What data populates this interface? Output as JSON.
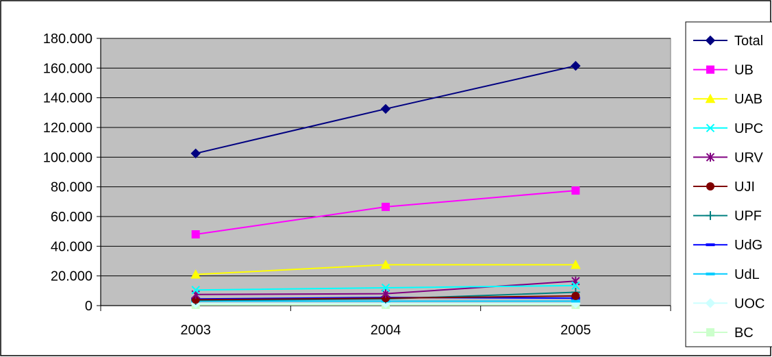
{
  "chart_data": {
    "type": "line",
    "title": "",
    "xlabel": "",
    "ylabel": "",
    "categories": [
      "2003",
      "2004",
      "2005"
    ],
    "ylim": [
      0,
      180000
    ],
    "yticks": [
      {
        "value": 0,
        "label": "0"
      },
      {
        "value": 20000,
        "label": "20.000"
      },
      {
        "value": 40000,
        "label": "40.000"
      },
      {
        "value": 60000,
        "label": "60.000"
      },
      {
        "value": 80000,
        "label": "80.000"
      },
      {
        "value": 100000,
        "label": "100.000"
      },
      {
        "value": 120000,
        "label": "120.000"
      },
      {
        "value": 140000,
        "label": "140.000"
      },
      {
        "value": 160000,
        "label": "160.000"
      },
      {
        "value": 180000,
        "label": "180.000"
      }
    ],
    "grid": true,
    "legend_position": "right",
    "plot_background": "#c0c0c0",
    "series": [
      {
        "name": "Total",
        "color": "#000080",
        "marker": "diamond",
        "values": [
          102500,
          132500,
          161500
        ]
      },
      {
        "name": "UB",
        "color": "#ff00ff",
        "marker": "square",
        "values": [
          48000,
          66500,
          77500
        ]
      },
      {
        "name": "UAB",
        "color": "#ffff00",
        "marker": "triangle",
        "values": [
          21000,
          27500,
          27500
        ]
      },
      {
        "name": "UPC",
        "color": "#00ffff",
        "marker": "x",
        "values": [
          10500,
          12000,
          13500
        ]
      },
      {
        "name": "URV",
        "color": "#800080",
        "marker": "star",
        "values": [
          7500,
          8000,
          16500
        ]
      },
      {
        "name": "UJI",
        "color": "#800000",
        "marker": "circle",
        "values": [
          4000,
          5000,
          6500
        ]
      },
      {
        "name": "UPF",
        "color": "#008080",
        "marker": "plus",
        "values": [
          3500,
          4500,
          9000
        ]
      },
      {
        "name": "UdG",
        "color": "#0000ff",
        "marker": "dash",
        "values": [
          4500,
          5500,
          5000
        ]
      },
      {
        "name": "UdL",
        "color": "#00ccff",
        "marker": "dash",
        "values": [
          3000,
          3000,
          3000
        ]
      },
      {
        "name": "UOC",
        "color": "#ccffff",
        "marker": "diamond",
        "values": [
          1500,
          1500,
          1500
        ]
      },
      {
        "name": "BC",
        "color": "#ccffcc",
        "marker": "square",
        "values": [
          500,
          500,
          500
        ]
      }
    ]
  }
}
